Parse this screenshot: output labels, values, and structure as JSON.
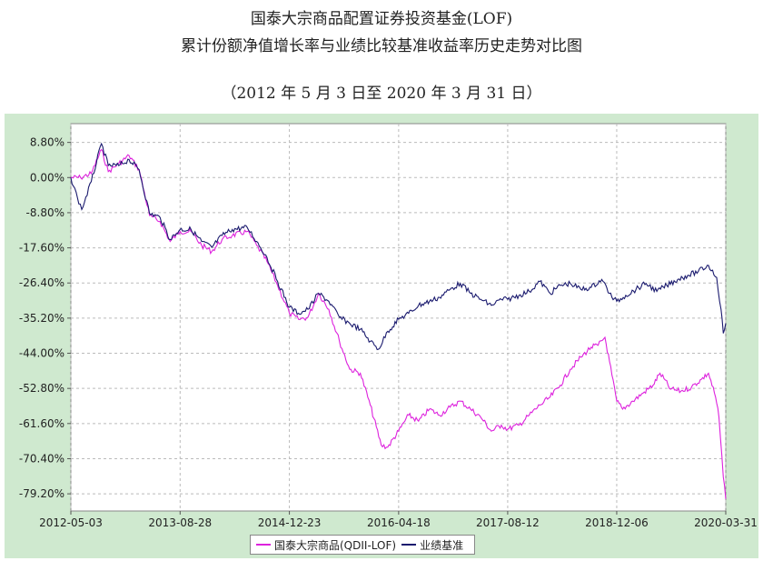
{
  "title_line1": "国泰大宗商品配置证券投资基金(LOF)",
  "title_line2": "累计份额净值增长率与业绩比较基准收益率历史走势对比图",
  "title_line3": "（2012 年 5 月 3 日至 2020 年 3 月 31 日）",
  "colors": {
    "fund": "#dd22dd",
    "benchmark": "#1a1a6e",
    "panel_bg": "#cfe9cf",
    "plot_bg": "#ffffff",
    "grid": "#bbbbbb"
  },
  "chart_data": {
    "type": "line",
    "xlabel": "",
    "ylabel": "",
    "x_ticks": [
      "2012-05-03",
      "2013-08-28",
      "2014-12-23",
      "2016-04-18",
      "2017-08-12",
      "2018-12-06",
      "2020-03-31"
    ],
    "y_ticks": [
      "8.80%",
      "0.00%",
      "-8.80%",
      "-17.60%",
      "-26.40%",
      "-35.20%",
      "-44.00%",
      "-52.80%",
      "-61.60%",
      "-70.40%",
      "-79.20%"
    ],
    "xlim": [
      "2012-05-03",
      "2020-03-31"
    ],
    "ylim": [
      -83.5,
      13.5
    ],
    "grid": true,
    "legend_position": "bottom-center",
    "series": [
      {
        "name": "国泰大宗商品(QDII-LOF)",
        "color": "#dd22dd",
        "points": [
          [
            "2012-05-03",
            0.0
          ],
          [
            "2012-06-15",
            0.0
          ],
          [
            "2012-08-01",
            1.0
          ],
          [
            "2012-09-15",
            7.0
          ],
          [
            "2012-10-15",
            1.5
          ],
          [
            "2012-11-30",
            3.5
          ],
          [
            "2013-01-15",
            5.5
          ],
          [
            "2013-02-28",
            2.0
          ],
          [
            "2013-04-15",
            -9.5
          ],
          [
            "2013-06-01",
            -11.0
          ],
          [
            "2013-07-15",
            -16.0
          ],
          [
            "2013-08-28",
            -13.5
          ],
          [
            "2013-10-15",
            -13.5
          ],
          [
            "2013-12-01",
            -17.0
          ],
          [
            "2014-01-15",
            -18.5
          ],
          [
            "2014-03-01",
            -15.5
          ],
          [
            "2014-04-15",
            -14.5
          ],
          [
            "2014-06-20",
            -13.5
          ],
          [
            "2014-08-01",
            -17.0
          ],
          [
            "2014-09-15",
            -21.0
          ],
          [
            "2014-11-01",
            -27.0
          ],
          [
            "2014-12-23",
            -34.0
          ],
          [
            "2015-02-01",
            -35.5
          ],
          [
            "2015-03-15",
            -35.0
          ],
          [
            "2015-05-01",
            -29.0
          ],
          [
            "2015-06-15",
            -33.0
          ],
          [
            "2015-08-01",
            -41.0
          ],
          [
            "2015-09-15",
            -48.0
          ],
          [
            "2015-11-01",
            -49.0
          ],
          [
            "2015-12-15",
            -57.0
          ],
          [
            "2016-02-01",
            -67.0
          ],
          [
            "2016-03-01",
            -67.5
          ],
          [
            "2016-04-18",
            -63.5
          ],
          [
            "2016-06-01",
            -59.5
          ],
          [
            "2016-07-15",
            -61.0
          ],
          [
            "2016-09-01",
            -58.0
          ],
          [
            "2016-10-15",
            -59.5
          ],
          [
            "2016-12-01",
            -57.5
          ],
          [
            "2017-01-15",
            -56.0
          ],
          [
            "2017-03-01",
            -58.0
          ],
          [
            "2017-04-15",
            -60.0
          ],
          [
            "2017-06-01",
            -63.5
          ],
          [
            "2017-07-15",
            -62.0
          ],
          [
            "2017-08-12",
            -63.0
          ],
          [
            "2017-10-01",
            -62.0
          ],
          [
            "2017-11-15",
            -59.5
          ],
          [
            "2018-01-01",
            -57.0
          ],
          [
            "2018-02-15",
            -55.0
          ],
          [
            "2018-04-01",
            -52.0
          ],
          [
            "2018-05-15",
            -48.0
          ],
          [
            "2018-07-01",
            -45.0
          ],
          [
            "2018-08-15",
            -42.5
          ],
          [
            "2018-09-15",
            -42.0
          ],
          [
            "2018-10-15",
            -40.0
          ],
          [
            "2018-11-15",
            -49.5
          ],
          [
            "2018-12-06",
            -56.0
          ],
          [
            "2019-01-01",
            -58.0
          ],
          [
            "2019-02-15",
            -56.0
          ],
          [
            "2019-04-01",
            -54.0
          ],
          [
            "2019-05-15",
            -52.0
          ],
          [
            "2019-06-15",
            -49.0
          ],
          [
            "2019-08-01",
            -53.0
          ],
          [
            "2019-09-15",
            -53.5
          ],
          [
            "2019-11-01",
            -52.5
          ],
          [
            "2019-12-15",
            -50.5
          ],
          [
            "2020-01-15",
            -49.0
          ],
          [
            "2020-02-15",
            -55.0
          ],
          [
            "2020-03-01",
            -60.0
          ],
          [
            "2020-03-20",
            -75.0
          ],
          [
            "2020-03-31",
            -80.5
          ]
        ]
      },
      {
        "name": "业绩基准",
        "color": "#1a1a6e",
        "points": [
          [
            "2012-05-03",
            0.0
          ],
          [
            "2012-06-01",
            -5.0
          ],
          [
            "2012-06-20",
            -8.0
          ],
          [
            "2012-08-01",
            -1.0
          ],
          [
            "2012-09-15",
            8.5
          ],
          [
            "2012-10-15",
            3.0
          ],
          [
            "2012-11-30",
            3.0
          ],
          [
            "2013-01-15",
            4.5
          ],
          [
            "2013-02-28",
            2.0
          ],
          [
            "2013-04-15",
            -9.0
          ],
          [
            "2013-06-01",
            -10.0
          ],
          [
            "2013-07-15",
            -15.5
          ],
          [
            "2013-08-28",
            -13.0
          ],
          [
            "2013-10-15",
            -13.0
          ],
          [
            "2013-12-01",
            -16.0
          ],
          [
            "2014-01-15",
            -17.5
          ],
          [
            "2014-03-01",
            -14.5
          ],
          [
            "2014-04-15",
            -13.0
          ],
          [
            "2014-06-20",
            -12.5
          ],
          [
            "2014-08-01",
            -16.0
          ],
          [
            "2014-09-15",
            -20.0
          ],
          [
            "2014-11-01",
            -26.0
          ],
          [
            "2014-12-23",
            -32.5
          ],
          [
            "2015-02-01",
            -34.0
          ],
          [
            "2015-03-15",
            -33.0
          ],
          [
            "2015-05-01",
            -29.0
          ],
          [
            "2015-06-15",
            -31.0
          ],
          [
            "2015-08-01",
            -35.0
          ],
          [
            "2015-09-15",
            -36.5
          ],
          [
            "2015-11-01",
            -38.0
          ],
          [
            "2015-12-15",
            -41.0
          ],
          [
            "2016-01-20",
            -43.0
          ],
          [
            "2016-03-01",
            -38.5
          ],
          [
            "2016-04-18",
            -35.5
          ],
          [
            "2016-06-01",
            -34.0
          ],
          [
            "2016-07-15",
            -32.0
          ],
          [
            "2016-09-01",
            -31.0
          ],
          [
            "2016-10-15",
            -30.0
          ],
          [
            "2016-12-01",
            -28.0
          ],
          [
            "2017-01-15",
            -26.5
          ],
          [
            "2017-03-01",
            -29.0
          ],
          [
            "2017-04-15",
            -30.5
          ],
          [
            "2017-06-01",
            -32.0
          ],
          [
            "2017-07-15",
            -30.5
          ],
          [
            "2017-08-12",
            -30.5
          ],
          [
            "2017-10-01",
            -29.5
          ],
          [
            "2017-11-15",
            -28.5
          ],
          [
            "2018-01-01",
            -26.0
          ],
          [
            "2018-02-15",
            -29.0
          ],
          [
            "2018-04-01",
            -27.0
          ],
          [
            "2018-05-15",
            -26.5
          ],
          [
            "2018-07-01",
            -28.0
          ],
          [
            "2018-08-15",
            -27.5
          ],
          [
            "2018-10-01",
            -25.5
          ],
          [
            "2018-11-15",
            -30.0
          ],
          [
            "2018-12-06",
            -31.0
          ],
          [
            "2019-01-15",
            -29.5
          ],
          [
            "2019-03-01",
            -28.0
          ],
          [
            "2019-04-15",
            -26.5
          ],
          [
            "2019-06-01",
            -28.5
          ],
          [
            "2019-07-15",
            -27.0
          ],
          [
            "2019-09-01",
            -25.5
          ],
          [
            "2019-10-15",
            -24.5
          ],
          [
            "2019-12-01",
            -23.5
          ],
          [
            "2020-01-15",
            -22.0
          ],
          [
            "2020-02-20",
            -25.0
          ],
          [
            "2020-03-10",
            -33.0
          ],
          [
            "2020-03-20",
            -39.0
          ],
          [
            "2020-03-31",
            -36.5
          ]
        ]
      }
    ]
  }
}
